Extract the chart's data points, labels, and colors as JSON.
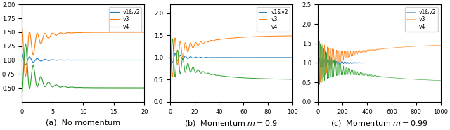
{
  "title_a": "(a)  No momentum",
  "title_b": "(b)  Momentum $m = 0.9$",
  "title_c": "(c)  Momentum $m = 0.99$",
  "legend_labels": [
    "v1&v2",
    "v3",
    "v4"
  ],
  "colors": [
    "#1f77b4",
    "#ff7f0e",
    "#2ca02c"
  ],
  "figsize": [
    6.4,
    1.85
  ],
  "dpi": 100,
  "panel_a": {
    "xlim": [
      0,
      20
    ],
    "ylim": [
      0.25,
      2.0
    ],
    "yticks": [
      0.5,
      0.75,
      1.0,
      1.25,
      1.5,
      1.75,
      2.0
    ],
    "xticks": [
      0,
      5,
      10,
      15,
      20
    ],
    "freq": 5.0,
    "decay": 0.6,
    "amp": 0.6,
    "N": 2000
  },
  "panel_b": {
    "xlim": [
      0,
      100
    ],
    "ylim": [
      0.0,
      2.2
    ],
    "yticks": [
      0.0,
      0.5,
      1.0,
      1.5,
      2.0
    ],
    "xticks": [
      0,
      20,
      40,
      60,
      80,
      100
    ],
    "freq": 1.5,
    "decay": 0.12,
    "amp": 0.6,
    "N": 3000
  },
  "panel_c": {
    "xlim": [
      0,
      1000
    ],
    "ylim": [
      0.0,
      2.5
    ],
    "yticks": [
      0.0,
      0.5,
      1.0,
      1.5,
      2.0,
      2.5
    ],
    "xticks": [
      0,
      200,
      400,
      600,
      800,
      1000
    ],
    "freq": 0.5,
    "decay": 0.008,
    "amp": 0.6,
    "N": 10000
  }
}
